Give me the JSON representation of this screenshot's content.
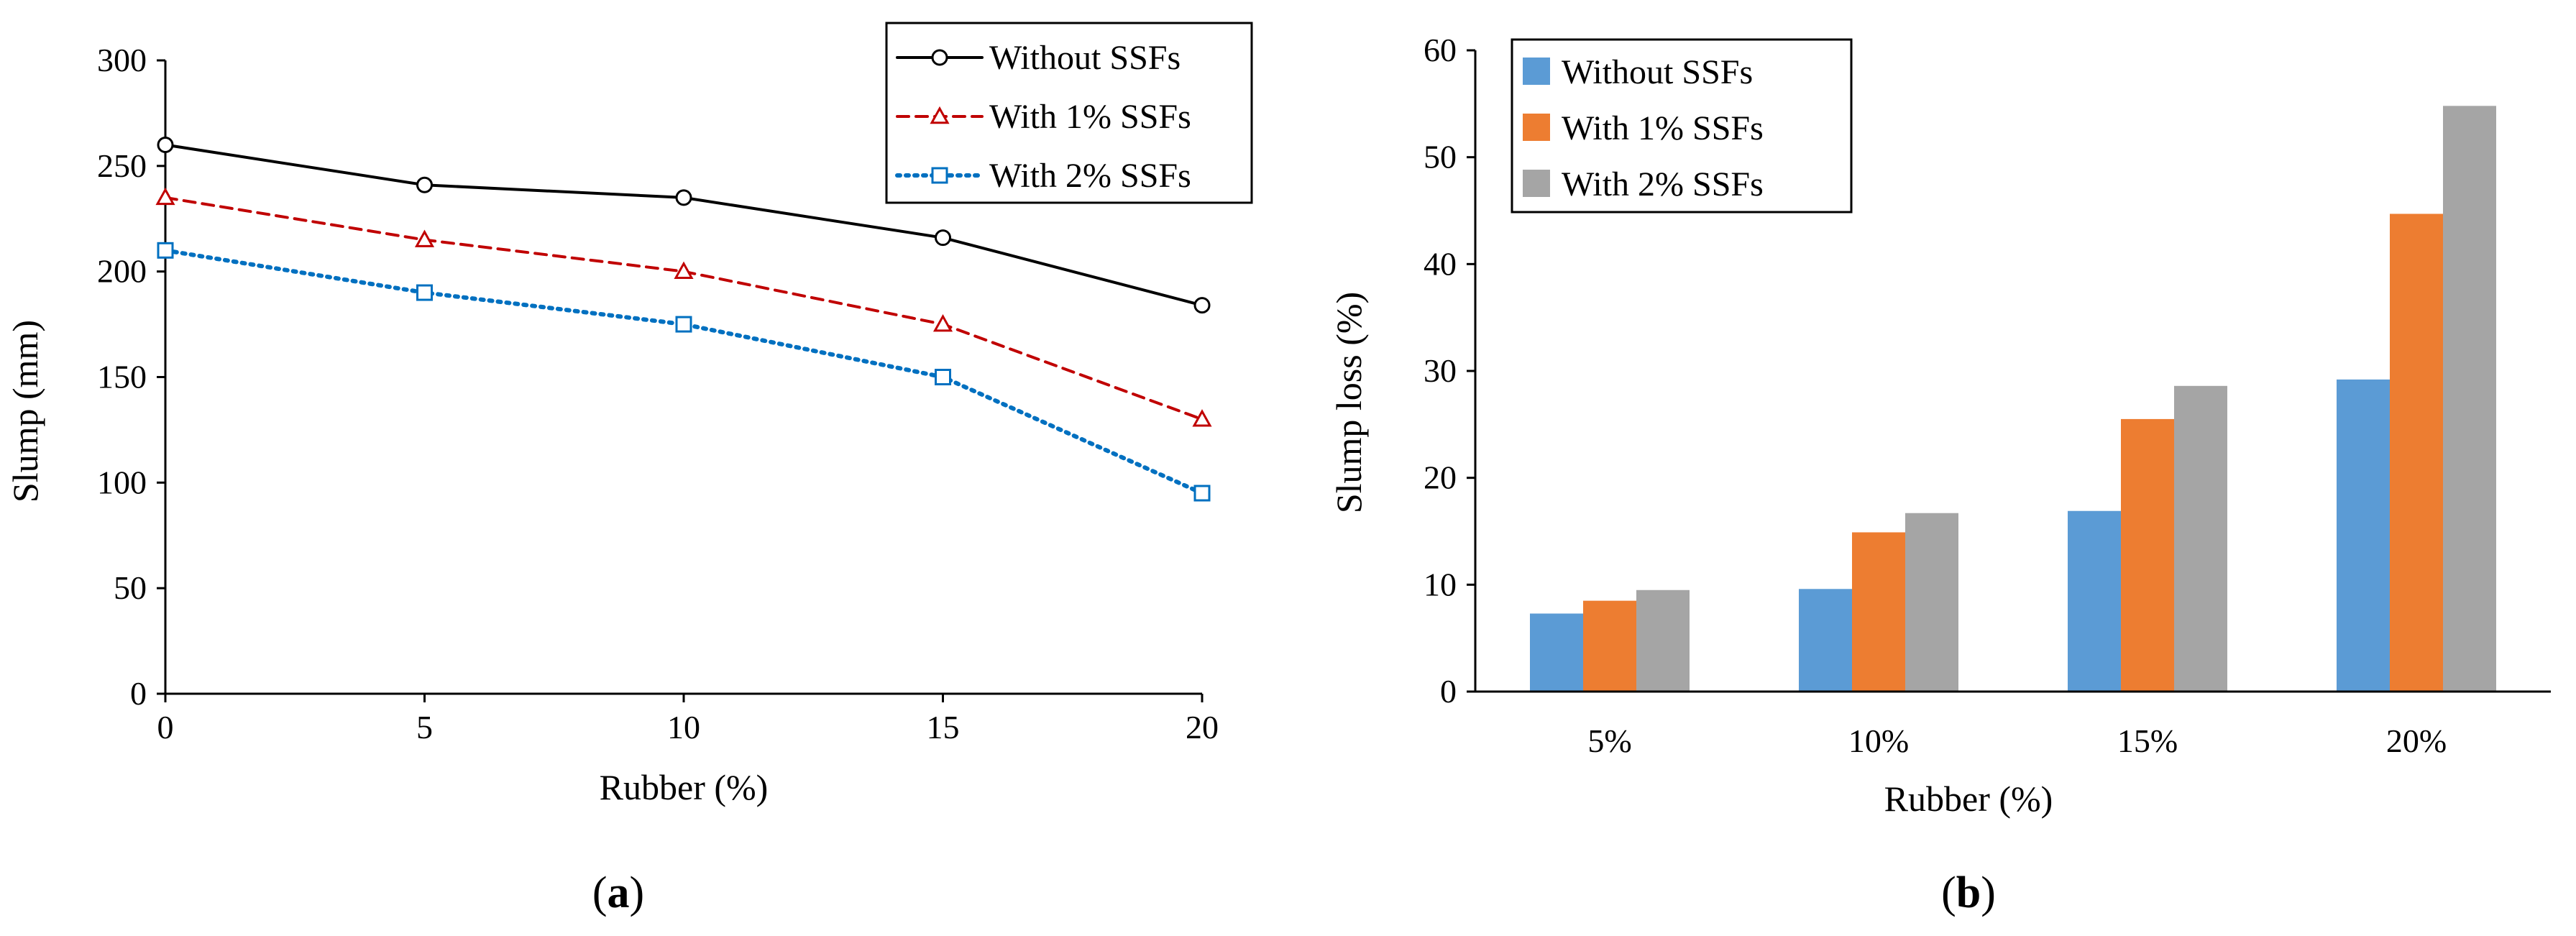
{
  "chart_data": [
    {
      "type": "line",
      "panel_label": "a",
      "title": "",
      "xlabel": "Rubber (%)",
      "ylabel": "Slump (mm)",
      "x": [
        0,
        5,
        10,
        15,
        20
      ],
      "x_ticks": [
        "0",
        "5",
        "10",
        "15",
        "20"
      ],
      "xlim": [
        0,
        20
      ],
      "ylim": [
        0,
        300
      ],
      "y_ticks": [
        "0",
        "50",
        "100",
        "150",
        "200",
        "250",
        "300"
      ],
      "grid": false,
      "legend_position": "top-right",
      "series": [
        {
          "name": "Without SSFs",
          "values": [
            260,
            241,
            235,
            216,
            184
          ],
          "color": "#000000",
          "line": "solid",
          "marker": "circle"
        },
        {
          "name": "With 1% SSFs",
          "values": [
            235,
            215,
            200,
            175,
            130
          ],
          "color": "#c00000",
          "line": "dashed",
          "marker": "triangle"
        },
        {
          "name": "With 2% SSFs",
          "values": [
            210,
            190,
            175,
            150,
            95
          ],
          "color": "#0070c0",
          "line": "dotted",
          "marker": "square"
        }
      ]
    },
    {
      "type": "bar",
      "panel_label": "b",
      "title": "",
      "xlabel": "Rubber (%)",
      "ylabel": "Slump loss (%)",
      "categories": [
        "5%",
        "10%",
        "15%",
        "20%"
      ],
      "ylim": [
        0,
        60
      ],
      "y_ticks": [
        "0",
        "10",
        "20",
        "30",
        "40",
        "50",
        "60"
      ],
      "grid": false,
      "legend_position": "top-left",
      "series": [
        {
          "name": "Without SSFs",
          "values": [
            7.3,
            9.6,
            16.9,
            29.2
          ],
          "color": "#5b9bd5"
        },
        {
          "name": "With 1% SSFs",
          "values": [
            8.5,
            14.9,
            25.5,
            44.7
          ],
          "color": "#ed7d31"
        },
        {
          "name": "With 2% SSFs",
          "values": [
            9.5,
            16.7,
            28.6,
            54.8
          ],
          "color": "#a5a5a5"
        }
      ]
    }
  ]
}
